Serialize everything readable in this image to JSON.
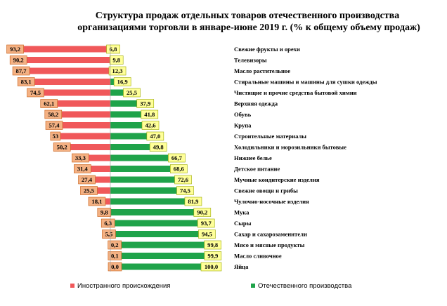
{
  "chart_data": {
    "type": "bar",
    "orientation": "horizontal-diverging",
    "title": "Структура продаж отдельных товаров отечественного производства организациями торговли в январе-июне 2019 г. (% к общему объему продаж)",
    "title_lines": [
      "Структура продаж отдельных товаров отечественного производства",
      "организациями торговли в январе-июне 2019 г. (% к общему объему продаж)"
    ],
    "categories": [
      "Свежие фрукты и орехи",
      "Телевизоры",
      "Масло растительное",
      "Стиральные машины и машины для сушки одежды",
      "Чистящие и прочие средства бытовой химии",
      "Верхняя одежда",
      "Обувь",
      "Крупа",
      "Строительные материалы",
      "Холодильники и морозильники бытовые",
      "Нижнее белье",
      "Детское питание",
      "Мучные кондитерские изделия",
      "Свежие овощи и грибы",
      "Чулочно-носочные изделия",
      "Мука",
      "Сыры",
      "Сахар и сахарозаменители",
      "Мясо и мясные продукты",
      "Масло сливочное",
      "Яйца"
    ],
    "series": [
      {
        "name": "Иностранного происхождения",
        "color": "#f0585a",
        "label_bg": "#f4b183",
        "values": [
          93.2,
          90.2,
          87.7,
          83.1,
          74.5,
          62.1,
          58.2,
          57.4,
          53,
          50.2,
          33.3,
          31.4,
          27.4,
          25.5,
          18.1,
          9.8,
          6.3,
          5.5,
          0.2,
          0.1,
          0.0
        ],
        "labels": [
          "93,2",
          "90,2",
          "87,7",
          "83,1",
          "74,5",
          "62,1",
          "58,2",
          "57,4",
          "53",
          "50,2",
          "33,3",
          "31,4",
          "27,4",
          "25,5",
          "18,1",
          "9,8",
          "6,3",
          "5,5",
          "0,2",
          "0,1",
          "0,0"
        ]
      },
      {
        "name": "Отечественного производства",
        "color": "#1fa34a",
        "label_bg": "#ffff99",
        "values": [
          6.8,
          9.8,
          12.3,
          16.9,
          25.5,
          37.9,
          41.8,
          42.6,
          47.0,
          49.8,
          66.7,
          68.6,
          72.6,
          74.5,
          81.9,
          90.2,
          93.7,
          94.5,
          99.8,
          99.9,
          100.0
        ],
        "labels": [
          "6,8",
          "9,8",
          "12,3",
          "16,9",
          "25,5",
          "37,9",
          "41,8",
          "42,6",
          "47,0",
          "49,8",
          "66,7",
          "68,6",
          "72,6",
          "74,5",
          "81,9",
          "90,2",
          "93,7",
          "94,5",
          "99,8",
          "99,9",
          "100,0"
        ]
      }
    ],
    "legend_position": "bottom",
    "grid": false
  }
}
